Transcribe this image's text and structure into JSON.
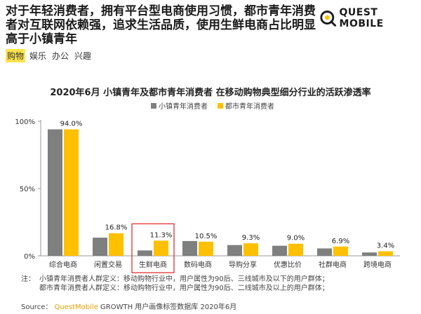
{
  "headline": "对于年轻消费者，拥有平台型电商使用习惯，都市青年消费者对互联网依赖强，追求生活品质，使用生鲜电商占比明显高于小镇青年",
  "logo": {
    "text": "QUEST MOBILE"
  },
  "tags": [
    {
      "label": "购物",
      "active": true
    },
    {
      "label": "娱乐",
      "active": false
    },
    {
      "label": "办公",
      "active": false
    },
    {
      "label": "兴趣",
      "active": false
    }
  ],
  "colors": {
    "gray": "#7f7f7f",
    "yellow": "#ffc000",
    "highlight_box": "#e02020",
    "brand": "#e8a200"
  },
  "chart_data": {
    "type": "bar",
    "title": "2020年6月 小镇青年及都市青年消费者 在移动购物典型细分行业的活跃渗透率",
    "categories": [
      "综合电商",
      "闲置交易",
      "生鲜电商",
      "数码电商",
      "导购分享",
      "优惠比价",
      "社群电商",
      "跨境电商"
    ],
    "series": [
      {
        "name": "小镇青年消费者",
        "color": "#7f7f7f",
        "values": [
          94.0,
          13.5,
          4.0,
          11.0,
          8.0,
          7.5,
          5.5,
          2.5
        ]
      },
      {
        "name": "都市青年消费者",
        "color": "#ffc000",
        "values": [
          94.0,
          16.8,
          11.3,
          10.5,
          9.3,
          9.0,
          6.9,
          3.4
        ]
      }
    ],
    "data_labels": [
      "94.0%",
      "16.8%",
      "11.3%",
      "10.5%",
      "9.3%",
      "9.0%",
      "6.9%",
      "3.4%"
    ],
    "ytick_labels": [
      "100%",
      "50%",
      "0%"
    ],
    "ylim": [
      0,
      100
    ],
    "highlight_category": "生鲜电商",
    "grid": false,
    "legend_position": "top-center"
  },
  "notes": {
    "label": "注：",
    "line1": "小镇青年消费者人群定义：移动购物行业中，用户属性为90后、三线城市及以下的用户群体；",
    "line2": "都市青年消费者人群定义：移动购物行业中，用户属性为90后、二线城市及以上的用户群体；"
  },
  "source": {
    "label": "Source：",
    "brand": "QuestMobile",
    "rest": "GROWTH 用户画像标签数据库 2020年6月"
  }
}
